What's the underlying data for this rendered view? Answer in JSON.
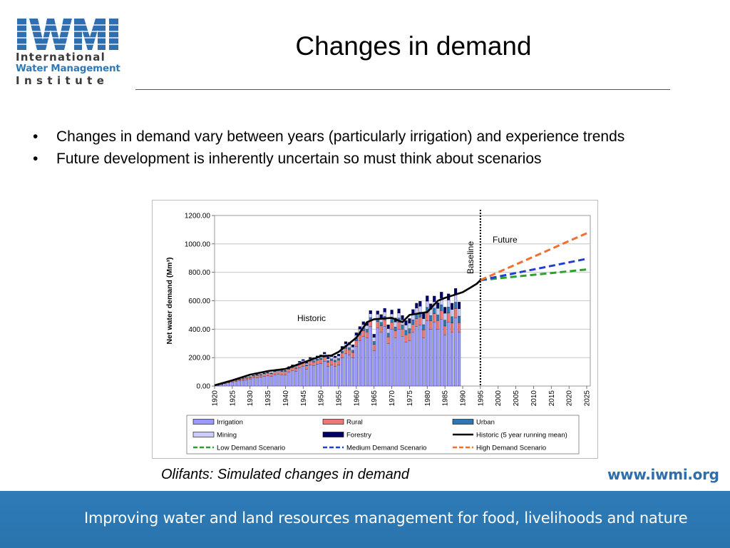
{
  "logo": {
    "mark": "IWMI",
    "line1": "International",
    "line2": "Water Management",
    "line3": "Institute",
    "colors": {
      "mark": "#2f6fb0",
      "dark": "#3a3a3a"
    }
  },
  "title": "Changes in demand",
  "bullets": [
    "Changes in demand vary between years (particularly irrigation) and experience trends",
    "Future development is inherently uncertain so must think about scenarios"
  ],
  "caption": "Olifants: Simulated changes in demand",
  "url": "www.iwmi.org",
  "footer": {
    "tagline": "Improving water and land resources management for food, livelihoods and nature"
  },
  "chart_data": {
    "type": "bar",
    "ylabel": "Net water demand (Mm³)",
    "ylim": [
      0,
      1200
    ],
    "yticks": [
      "0.00",
      "200.00",
      "400.00",
      "600.00",
      "800.00",
      "1000.00",
      "1200.00"
    ],
    "xlim": [
      1920,
      2026
    ],
    "xticks": [
      "1920",
      "1925",
      "1930",
      "1935",
      "1940",
      "1945",
      "1950",
      "1955",
      "1960",
      "1965",
      "1970",
      "1975",
      "1980",
      "1985",
      "1990",
      "1995",
      "2000",
      "2005",
      "2010",
      "2015",
      "2020",
      "2025"
    ],
    "grid": true,
    "legend_position": "bottom",
    "annotations": {
      "historic": "Historic",
      "baseline": "Baseline",
      "future": "Future"
    },
    "baseline_year": 1995,
    "colors": {
      "irrigation": "#9999ff",
      "rural": "#ee7777",
      "urban": "#2e75b6",
      "mining": "#ccccff",
      "forestry": "#000066",
      "historic": "#000000",
      "low": "#2ca02c",
      "medium": "#1f3fcf",
      "high": "#f07030"
    },
    "series": [
      {
        "key": "irrigation",
        "name": "Irrigation",
        "values": [
          5,
          10,
          17,
          22,
          28,
          32,
          36,
          40,
          44,
          50,
          56,
          60,
          62,
          68,
          72,
          68,
          80,
          85,
          80,
          78,
          100,
          110,
          105,
          130,
          140,
          120,
          150,
          145,
          155,
          160,
          175,
          140,
          150,
          140,
          150,
          200,
          230,
          220,
          200,
          280,
          320,
          350,
          340,
          420,
          250,
          410,
          380,
          420,
          300,
          400,
          340,
          400,
          350,
          310,
          320,
          380,
          420,
          430,
          340,
          460,
          400,
          450,
          400,
          470,
          360,
          450,
          380,
          480,
          380
        ]
      },
      {
        "key": "rural",
        "name": "Rural",
        "values": [
          2,
          3,
          4,
          5,
          6,
          7,
          8,
          9,
          10,
          10,
          11,
          12,
          12,
          13,
          14,
          14,
          15,
          16,
          16,
          17,
          18,
          19,
          20,
          21,
          22,
          22,
          24,
          25,
          26,
          27,
          28,
          28,
          30,
          31,
          32,
          33,
          34,
          35,
          36,
          37,
          38,
          39,
          40,
          41,
          42,
          43,
          44,
          45,
          46,
          47,
          48,
          49,
          50,
          51,
          52,
          53,
          54,
          55,
          56,
          57,
          58,
          59,
          60,
          61,
          62,
          63,
          64,
          65,
          66
        ]
      },
      {
        "key": "urban",
        "name": "Urban",
        "values": [
          0,
          0,
          0,
          0,
          0,
          0,
          0,
          0,
          0,
          0,
          0,
          0,
          0,
          0,
          0,
          0,
          0,
          0,
          0,
          0,
          5,
          5,
          6,
          6,
          7,
          7,
          8,
          8,
          9,
          9,
          10,
          10,
          11,
          11,
          12,
          13,
          14,
          15,
          16,
          17,
          18,
          19,
          20,
          21,
          22,
          23,
          24,
          25,
          26,
          27,
          28,
          29,
          30,
          31,
          32,
          33,
          34,
          35,
          36,
          37,
          38,
          39,
          40,
          41,
          42,
          43,
          44,
          45,
          46
        ]
      },
      {
        "key": "mining",
        "name": "Mining",
        "values": [
          1,
          1,
          2,
          2,
          3,
          3,
          3,
          4,
          4,
          4,
          5,
          5,
          5,
          6,
          6,
          6,
          7,
          7,
          7,
          8,
          8,
          9,
          9,
          10,
          10,
          11,
          11,
          12,
          12,
          13,
          14,
          15,
          16,
          17,
          18,
          19,
          20,
          21,
          22,
          23,
          24,
          25,
          26,
          27,
          28,
          29,
          30,
          31,
          32,
          33,
          34,
          35,
          36,
          37,
          38,
          39,
          40,
          41,
          42,
          43,
          44,
          45,
          46,
          47,
          48,
          49,
          50,
          51,
          52
        ]
      },
      {
        "key": "forestry",
        "name": "Forestry",
        "values": [
          1,
          1,
          1,
          2,
          2,
          2,
          2,
          3,
          3,
          3,
          3,
          4,
          4,
          4,
          4,
          5,
          5,
          5,
          5,
          6,
          6,
          6,
          7,
          7,
          8,
          8,
          9,
          9,
          10,
          10,
          11,
          11,
          12,
          12,
          13,
          14,
          15,
          16,
          17,
          18,
          19,
          20,
          21,
          22,
          23,
          24,
          25,
          26,
          27,
          28,
          29,
          30,
          31,
          32,
          33,
          34,
          35,
          36,
          37,
          38,
          39,
          40,
          41,
          42,
          43,
          44,
          45,
          46,
          47
        ]
      }
    ],
    "bar_years": [
      1921,
      1922,
      1923,
      1924,
      1925,
      1926,
      1927,
      1928,
      1929,
      1930,
      1931,
      1932,
      1933,
      1934,
      1935,
      1936,
      1937,
      1938,
      1939,
      1940,
      1941,
      1942,
      1943,
      1944,
      1945,
      1946,
      1947,
      1948,
      1949,
      1950,
      1951,
      1952,
      1953,
      1954,
      1955,
      1956,
      1957,
      1958,
      1959,
      1960,
      1961,
      1962,
      1963,
      1964,
      1965,
      1966,
      1967,
      1968,
      1969,
      1970,
      1971,
      1972,
      1973,
      1974,
      1975,
      1976,
      1977,
      1978,
      1979,
      1980,
      1981,
      1982,
      1983,
      1984,
      1985,
      1986,
      1987,
      1988,
      1989
    ],
    "lines": [
      {
        "key": "historic",
        "name": "Historic (5 year running mean)",
        "style": "solid",
        "x": [
          1920,
          1925,
          1930,
          1935,
          1940,
          1945,
          1950,
          1953,
          1955,
          1960,
          1963,
          1965,
          1970,
          1973,
          1975,
          1980,
          1983,
          1985,
          1990,
          1992,
          1994,
          1995
        ],
        "y": [
          5,
          40,
          80,
          105,
          120,
          165,
          210,
          215,
          240,
          340,
          450,
          470,
          480,
          450,
          500,
          520,
          600,
          620,
          660,
          690,
          720,
          745
        ]
      },
      {
        "key": "low",
        "name": "Low Demand Scenario",
        "style": "dashed",
        "x": [
          1995,
          2025
        ],
        "y": [
          745,
          820
        ]
      },
      {
        "key": "medium",
        "name": "Medium Demand Scenario",
        "style": "dashed",
        "x": [
          1995,
          2025
        ],
        "y": [
          745,
          895
        ]
      },
      {
        "key": "high",
        "name": "High Demand Scenario",
        "style": "dashed",
        "x": [
          1995,
          2025
        ],
        "y": [
          745,
          1075
        ]
      }
    ],
    "legend": [
      {
        "label": "Irrigation",
        "kind": "box",
        "color": "#9999ff"
      },
      {
        "label": "Rural",
        "kind": "box",
        "color": "#ee7777"
      },
      {
        "label": "Urban",
        "kind": "box",
        "color": "#2e75b6"
      },
      {
        "label": "Mining",
        "kind": "box",
        "color": "#ccccff"
      },
      {
        "label": "Forestry",
        "kind": "box",
        "color": "#000066"
      },
      {
        "label": "Historic (5 year running mean)",
        "kind": "line",
        "color": "#000000"
      },
      {
        "label": "Low Demand Scenario",
        "kind": "dash",
        "color": "#2ca02c"
      },
      {
        "label": "Medium Demand Scenario",
        "kind": "dash",
        "color": "#1f3fcf"
      },
      {
        "label": "High Demand Scenario",
        "kind": "dash",
        "color": "#f07030"
      }
    ]
  }
}
